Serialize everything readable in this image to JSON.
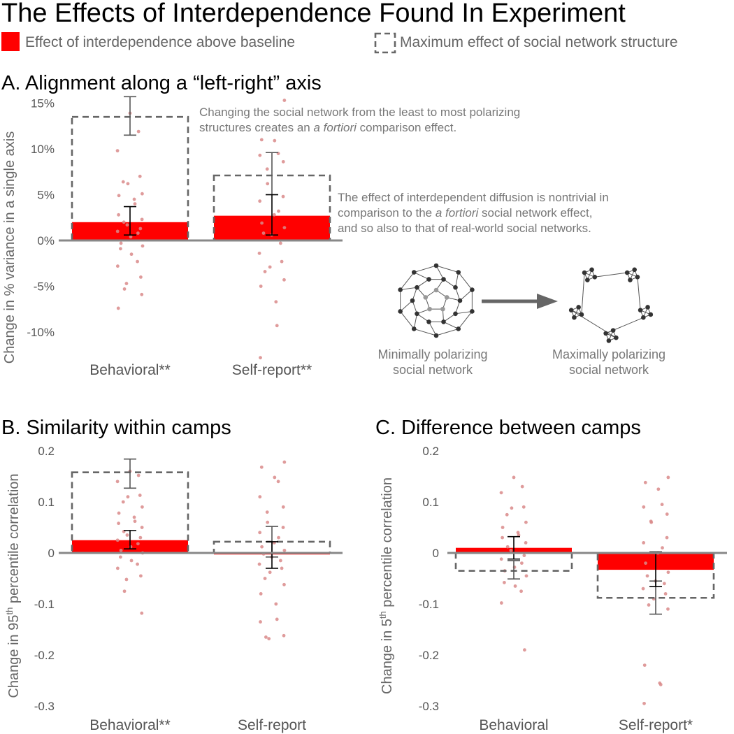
{
  "figure_title": "The Effects of Interdependence Found In Experiment",
  "legend": {
    "red_label": "Effect of interdependence above baseline",
    "dashed_label": "Maximum effect of social network structure"
  },
  "annotations": {
    "a_note1_line1": "Changing the social network from the least to most polarizing",
    "a_note1_line2_pre": "structures creates an ",
    "a_note1_line2_em": "a fortiori",
    "a_note1_line2_post": " comparison effect.",
    "a_note2_line1": "The effect of interdependent diffusion is nontrivial in",
    "a_note2_line2_pre": "comparison to the ",
    "a_note2_line2_em": "a fortiori",
    "a_note2_line2_post": " social network effect,",
    "a_note2_line3": "and so also to that of real-world social networks."
  },
  "networks": {
    "min_label_line1": "Minimally polarizing",
    "min_label_line2": "social network",
    "max_label_line1": "Maximally polarizing",
    "max_label_line2": "social network"
  },
  "colors": {
    "red_bar": "#ff0000",
    "dashed_box": "#666666",
    "points": "#d98a8a",
    "axis": "#888888",
    "error_bar_primary": "#000000",
    "error_bar_secondary": "#555555"
  },
  "chart_data": [
    {
      "panel": "A",
      "type": "bar",
      "title": "A. Alignment along a “left-right” axis",
      "ylabel": "Change in % variance in a single axis",
      "ylabel_sup": "",
      "ylabel_post": "",
      "ylim": [
        -12,
        16
      ],
      "yticks": [
        15,
        10,
        5,
        0,
        -5,
        -10
      ],
      "ytick_labels": [
        "15%",
        "10%",
        "5%",
        "0%",
        "-5%",
        "-10%"
      ],
      "categories": [
        "Behavioral**",
        "Self-report**"
      ],
      "series": [
        {
          "name": "Effect of interdependence above baseline",
          "values": [
            2.0,
            2.7
          ],
          "err_low": [
            0.6,
            0.6
          ],
          "err_high": [
            3.7,
            5.0
          ]
        },
        {
          "name": "Maximum effect of social network structure",
          "values": [
            13.5,
            7.1
          ],
          "err_low": [
            11.5,
            5.0
          ],
          "err_high": [
            15.7,
            9.6
          ]
        }
      ],
      "points": [
        [
          13.9,
          11.9,
          9.8,
          7.0,
          6.2,
          6.4,
          5.1,
          4.9,
          4.5,
          4.0,
          2.8,
          2.3,
          2.0,
          1.7,
          1.3,
          1.0,
          0.8,
          0.4,
          -0.3,
          -0.6,
          -0.9,
          -1.5,
          -2.3,
          -2.8,
          -4.0,
          -4.7,
          -5.3,
          -5.9,
          -7.4
        ],
        [
          15.3,
          11.0,
          10.9,
          9.5,
          9.3,
          8.6,
          7.8,
          6.2,
          4.8,
          4.3,
          3.2,
          2.8,
          1.9,
          1.4,
          0.8,
          0.6,
          -0.3,
          -1.4,
          -2.3,
          -2.9,
          -3.4,
          -4.3,
          -5.0,
          -6.7,
          -9.3,
          -12.8
        ]
      ]
    },
    {
      "panel": "B",
      "type": "bar",
      "title": "B. Similarity within camps",
      "ylabel": "Change in 95",
      "ylabel_sup": "th",
      "ylabel_post": " percentile correlation",
      "ylim": [
        -0.3,
        0.2
      ],
      "yticks": [
        0.2,
        0.1,
        0,
        -0.1,
        -0.2,
        -0.3
      ],
      "ytick_labels": [
        "0.2",
        "0.1",
        "0",
        "-0.1",
        "-0.2",
        "-0.3"
      ],
      "categories": [
        "Behavioral**",
        "Self-report"
      ],
      "series": [
        {
          "name": "Effect of interdependence above baseline",
          "values": [
            0.025,
            -0.003
          ],
          "err_low": [
            0.008,
            -0.03
          ],
          "err_high": [
            0.044,
            0.022
          ]
        },
        {
          "name": "Maximum effect of social network structure",
          "values": [
            0.158,
            0.022
          ],
          "err_low": [
            0.127,
            -0.008
          ],
          "err_high": [
            0.184,
            0.052
          ]
        }
      ],
      "points": [
        [
          0.16,
          0.152,
          0.14,
          0.113,
          0.11,
          0.1,
          0.09,
          0.078,
          0.07,
          0.062,
          0.058,
          0.05,
          0.042,
          0.035,
          0.03,
          0.025,
          0.018,
          0.012,
          0.005,
          0.0,
          -0.008,
          -0.015,
          -0.022,
          -0.03,
          -0.045,
          -0.052,
          -0.075,
          -0.118
        ],
        [
          0.178,
          0.168,
          0.148,
          0.14,
          0.11,
          0.09,
          0.08,
          0.06,
          0.05,
          0.04,
          0.03,
          0.02,
          0.012,
          0.005,
          -0.002,
          -0.008,
          -0.015,
          -0.022,
          -0.03,
          -0.038,
          -0.05,
          -0.062,
          -0.08,
          -0.1,
          -0.13,
          -0.135,
          -0.162,
          -0.165,
          -0.168
        ]
      ]
    },
    {
      "panel": "C",
      "type": "bar",
      "title": "C. Difference between camps",
      "ylabel": "Change in 5",
      "ylabel_sup": "th",
      "ylabel_post": " percentile correlation",
      "ylim": [
        -0.3,
        0.2
      ],
      "yticks": [
        0.2,
        0.1,
        0,
        -0.1,
        -0.2,
        -0.3
      ],
      "ytick_labels": [
        "0.2",
        "0.1",
        "0",
        "-0.1",
        "-0.2",
        "-0.3"
      ],
      "categories": [
        "Behavioral",
        "Self-report*"
      ],
      "series": [
        {
          "name": "Effect of interdependence above baseline",
          "values": [
            0.01,
            -0.033
          ],
          "err_low": [
            -0.012,
            -0.066
          ],
          "err_high": [
            0.032,
            0.002
          ]
        },
        {
          "name": "Maximum effect of social network structure",
          "values": [
            -0.035,
            -0.088
          ],
          "err_low": [
            -0.051,
            -0.12
          ],
          "err_high": [
            -0.015,
            -0.055
          ]
        }
      ],
      "points": [
        [
          0.148,
          0.13,
          0.118,
          0.09,
          0.088,
          0.075,
          0.06,
          0.05,
          0.04,
          0.035,
          0.03,
          0.02,
          0.012,
          0.005,
          -0.005,
          -0.012,
          -0.02,
          -0.028,
          -0.035,
          -0.045,
          -0.058,
          -0.065,
          -0.075,
          -0.098,
          -0.19
        ],
        [
          0.148,
          0.138,
          0.125,
          0.095,
          0.09,
          0.076,
          0.062,
          0.06,
          0.03,
          0.02,
          0.01,
          0.0,
          -0.02,
          -0.038,
          -0.045,
          -0.055,
          -0.06,
          -0.07,
          -0.08,
          -0.09,
          -0.102,
          -0.11,
          -0.22,
          -0.255,
          -0.258,
          -0.295
        ]
      ]
    }
  ]
}
